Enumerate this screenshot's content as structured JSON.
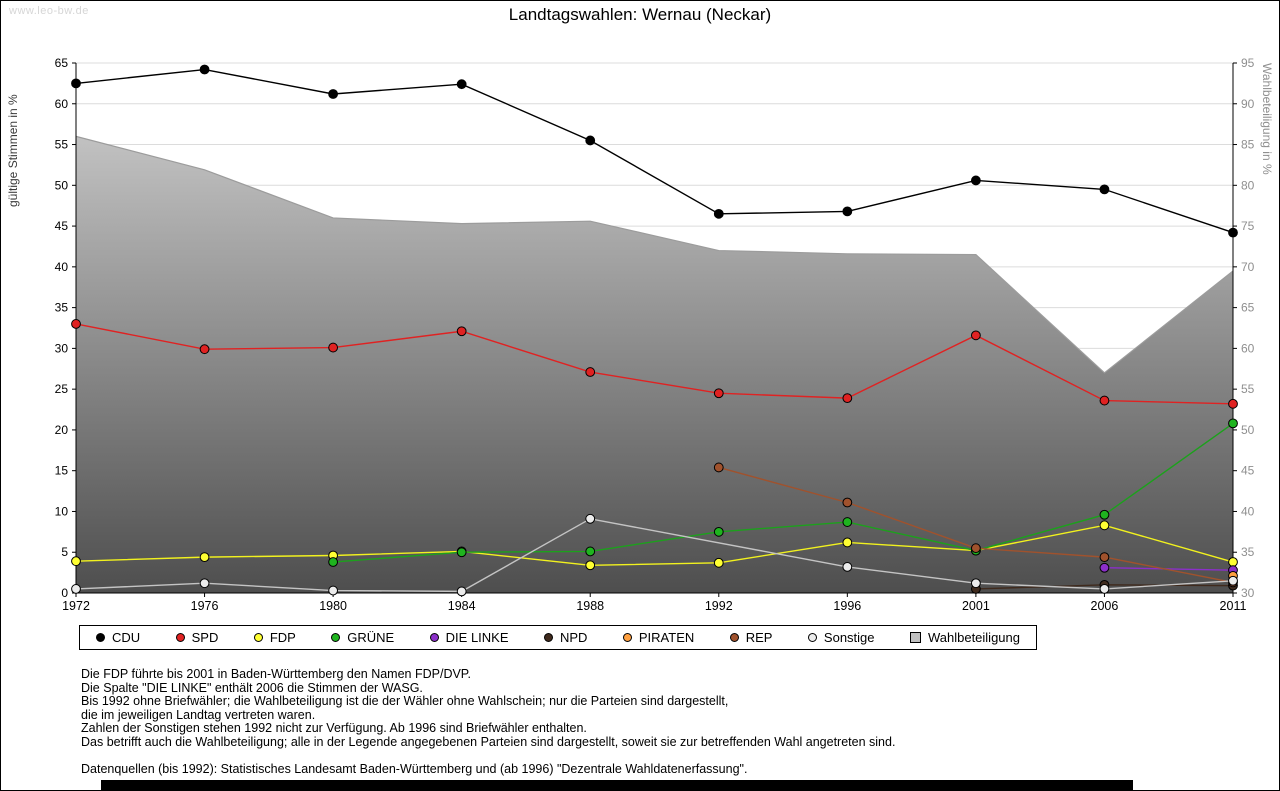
{
  "watermark": "www.leo-bw.de",
  "title": "Landtagswahlen: Wernau (Neckar)",
  "chart_data": {
    "type": "line",
    "title": "Landtagswahlen: Wernau (Neckar)",
    "x": [
      1972,
      1976,
      1980,
      1984,
      1988,
      1992,
      1996,
      2001,
      2006,
      2011
    ],
    "ylabel_left": "gültige Stimmen in %",
    "ylabel_right": "Wahlbeteiligung in %",
    "ylim_left": [
      0,
      65
    ],
    "ylim_right": [
      30,
      95
    ],
    "ytick_step": 5,
    "grid": true,
    "legend_position": "bottom",
    "series": [
      {
        "name": "CDU",
        "color": "#000000",
        "marker_fill": "#000000",
        "axis": "left",
        "values": [
          62.5,
          64.2,
          61.2,
          62.4,
          55.5,
          46.5,
          46.8,
          50.6,
          49.5,
          44.2
        ]
      },
      {
        "name": "SPD",
        "color": "#e02222",
        "marker_fill": "#e02222",
        "axis": "left",
        "values": [
          33.0,
          29.9,
          30.1,
          32.1,
          27.1,
          24.5,
          23.9,
          31.6,
          23.6,
          23.2
        ]
      },
      {
        "name": "FDP",
        "color": "#f2f21e",
        "marker_fill": "#ffff33",
        "axis": "left",
        "values": [
          3.9,
          4.4,
          4.6,
          5.1,
          3.4,
          3.7,
          6.2,
          5.2,
          8.3,
          3.8
        ]
      },
      {
        "name": "GRÜNE",
        "color": "#1ca11c",
        "marker_fill": "#1fb41f",
        "axis": "left",
        "values": [
          null,
          null,
          3.8,
          5.0,
          5.1,
          7.5,
          8.7,
          5.2,
          9.6,
          20.8
        ]
      },
      {
        "name": "DIE LINKE",
        "color": "#8b2fc9",
        "marker_fill": "#8b2fc9",
        "axis": "left",
        "values": [
          null,
          null,
          null,
          null,
          null,
          null,
          null,
          null,
          3.1,
          2.8
        ]
      },
      {
        "name": "NPD",
        "color": "#3f2a1d",
        "marker_fill": "#3f2a1d",
        "axis": "left",
        "values": [
          null,
          null,
          null,
          null,
          null,
          null,
          null,
          0.5,
          1.0,
          0.9
        ]
      },
      {
        "name": "PIRATEN",
        "color": "#ff8c28",
        "marker_fill": "#ffa040",
        "axis": "left",
        "values": [
          null,
          null,
          null,
          null,
          null,
          null,
          null,
          null,
          null,
          2.1
        ]
      },
      {
        "name": "REP",
        "color": "#a0522d",
        "marker_fill": "#a0522d",
        "axis": "left",
        "values": [
          null,
          null,
          null,
          null,
          null,
          15.4,
          11.1,
          5.5,
          4.4,
          1.3
        ]
      },
      {
        "name": "Sonstige",
        "color": "#c4c4c4",
        "marker_fill": "#ececec",
        "axis": "left",
        "values": [
          0.5,
          1.2,
          0.3,
          0.2,
          9.1,
          null,
          3.2,
          1.2,
          0.5,
          1.5
        ]
      }
    ],
    "area_series": {
      "name": "Wahlbeteiligung",
      "axis": "right",
      "color_top": "#d4d4d4",
      "color_bottom": "#4e4e4e",
      "edge_color": "#9c9c9c",
      "legend_fill": "#c0c0c0",
      "values": [
        86.0,
        81.9,
        76.0,
        75.3,
        75.6,
        72.0,
        71.6,
        71.5,
        57.0,
        69.5
      ]
    }
  },
  "footnotes": [
    "Die FDP führte bis 2001 in Baden-Württemberg den Namen FDP/DVP.",
    "Die Spalte \"DIE LINKE\" enthält 2006 die Stimmen der WASG.",
    "Bis 1992 ohne Briefwähler; die Wahlbeteiligung ist die der Wähler ohne Wahlschein; nur die Parteien sind dargestellt,",
    "die im jeweiligen Landtag vertreten waren.",
    "Zahlen der Sonstigen stehen 1992 nicht zur Verfügung. Ab 1996 sind Briefwähler enthalten.",
    "Das betrifft auch die Wahlbeteiligung; alle in der Legende angegebenen Parteien sind dargestellt, soweit sie zur betreffenden Wahl angetreten sind.",
    "",
    "Datenquellen (bis 1992): Statistisches Landesamt Baden-Württemberg und (ab 1996) \"Dezentrale Wahldatenerfassung\"."
  ]
}
